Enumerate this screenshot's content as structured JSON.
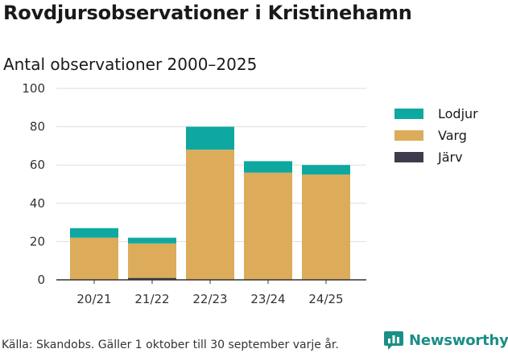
{
  "title": "Rovdjursobservationer i Kristinehamn",
  "subtitle": "Antal observationer 2000–2025",
  "footer": {
    "source": "Källa: Skandobs. Gäller 1 oktober till 30 september varje år.",
    "brand": "Newsworthy"
  },
  "colors": {
    "Lodjur": "#0ea8a0",
    "Varg": "#dcac5b",
    "Järv": "#3c3c4c",
    "grid": "#dddddd",
    "axis": "#333333",
    "brand": "#1a8f86"
  },
  "chart_data": {
    "type": "bar",
    "stacked": true,
    "title": "Antal observationer 2000–2025",
    "xlabel": "",
    "ylabel": "",
    "ylim": [
      0,
      100
    ],
    "yticks": [
      0,
      20,
      40,
      60,
      80,
      100
    ],
    "grid": true,
    "legend_position": "right",
    "categories": [
      "20/21",
      "21/22",
      "22/23",
      "23/24",
      "24/25"
    ],
    "series": [
      {
        "name": "Järv",
        "values": [
          0,
          1,
          0,
          0,
          0
        ]
      },
      {
        "name": "Varg",
        "values": [
          22,
          18,
          68,
          56,
          55
        ]
      },
      {
        "name": "Lodjur",
        "values": [
          5,
          3,
          12,
          6,
          5
        ]
      }
    ],
    "legend": [
      "Lodjur",
      "Varg",
      "Järv"
    ]
  }
}
